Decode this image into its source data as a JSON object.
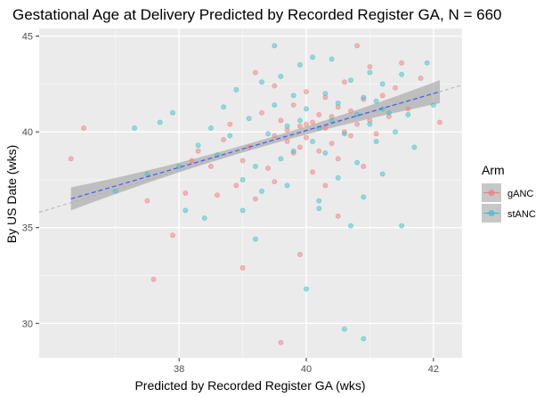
{
  "chart_data": {
    "type": "scatter",
    "title": "Gestational Age at Delivery Predicted by Recorded Register GA, N = 660",
    "xlabel": "Predicted by Recorded Register GA (wks)",
    "ylabel": "By US Date (wks)",
    "xlim": [
      35.8,
      42.45
    ],
    "ylim": [
      28.2,
      45.4
    ],
    "x_ticks": [
      38,
      40,
      42
    ],
    "y_ticks": [
      30,
      35,
      40,
      45
    ],
    "grid": true,
    "legend": {
      "title": "Arm",
      "placement": "right",
      "entries": [
        "gANC",
        "stANC"
      ]
    },
    "colors": {
      "gANC": "#f08080",
      "stANC": "#3fc1c9",
      "panel": "#ebebeb",
      "regression_line": "#3d5afe",
      "confidence_band": "#999999",
      "identity_line": "#b3b3b3"
    },
    "reference_line": {
      "type": "identity",
      "slope": 1,
      "intercept": 0
    },
    "regression": {
      "x": [
        36.3,
        42.1
      ],
      "y": [
        36.5,
        42.1
      ],
      "ci_half_width_at_ends": 0.6
    },
    "series": [
      {
        "name": "gANC",
        "points": [
          [
            36.3,
            38.6
          ],
          [
            36.5,
            40.2
          ],
          [
            37.5,
            36.4
          ],
          [
            37.6,
            32.3
          ],
          [
            37.9,
            34.6
          ],
          [
            38.1,
            36.8
          ],
          [
            38.3,
            39.0
          ],
          [
            38.5,
            38.2
          ],
          [
            38.7,
            39.6
          ],
          [
            38.8,
            40.4
          ],
          [
            38.9,
            37.2
          ],
          [
            39.0,
            38.5
          ],
          [
            39.0,
            32.9
          ],
          [
            39.1,
            39.2
          ],
          [
            39.2,
            36.5
          ],
          [
            39.3,
            41.0
          ],
          [
            39.4,
            38.1
          ],
          [
            39.5,
            39.8
          ],
          [
            39.5,
            37.4
          ],
          [
            39.6,
            29.0
          ],
          [
            39.6,
            40.6
          ],
          [
            39.7,
            39.5
          ],
          [
            39.7,
            40.1
          ],
          [
            39.8,
            38.9
          ],
          [
            39.8,
            41.4
          ],
          [
            39.9,
            40.3
          ],
          [
            39.9,
            39.2
          ],
          [
            40.0,
            42.1
          ],
          [
            40.0,
            39.7
          ],
          [
            40.1,
            40.5
          ],
          [
            40.1,
            37.9
          ],
          [
            40.2,
            40.9
          ],
          [
            40.2,
            39.0
          ],
          [
            40.3,
            41.8
          ],
          [
            40.3,
            40.2
          ],
          [
            40.4,
            39.4
          ],
          [
            40.4,
            40.8
          ],
          [
            40.5,
            38.6
          ],
          [
            40.5,
            41.3
          ],
          [
            40.6,
            40.0
          ],
          [
            40.6,
            42.6
          ],
          [
            40.7,
            39.8
          ],
          [
            40.7,
            41.1
          ],
          [
            40.8,
            40.4
          ],
          [
            40.9,
            38.2
          ],
          [
            40.9,
            41.7
          ],
          [
            41.0,
            40.6
          ],
          [
            41.0,
            43.4
          ],
          [
            41.1,
            39.9
          ],
          [
            41.2,
            41.9
          ],
          [
            41.3,
            40.8
          ],
          [
            41.4,
            42.3
          ],
          [
            41.5,
            43.6
          ],
          [
            41.6,
            41.2
          ],
          [
            41.8,
            42.8
          ],
          [
            42.1,
            40.5
          ],
          [
            39.9,
            33.6
          ],
          [
            40.3,
            37.2
          ],
          [
            40.5,
            35.6
          ],
          [
            39.5,
            42.4
          ],
          [
            38.2,
            38.5
          ],
          [
            38.6,
            36.7
          ],
          [
            39.2,
            43.1
          ],
          [
            40.8,
            44.5
          ],
          [
            40.0,
            40.4
          ]
        ]
      },
      {
        "name": "stANC",
        "points": [
          [
            37.0,
            36.9
          ],
          [
            37.3,
            40.2
          ],
          [
            37.5,
            37.8
          ],
          [
            37.7,
            40.5
          ],
          [
            37.9,
            41.0
          ],
          [
            38.0,
            38.2
          ],
          [
            38.1,
            35.9
          ],
          [
            38.3,
            39.3
          ],
          [
            38.4,
            35.5
          ],
          [
            38.5,
            40.2
          ],
          [
            38.6,
            38.8
          ],
          [
            38.7,
            41.3
          ],
          [
            38.8,
            39.8
          ],
          [
            38.9,
            42.2
          ],
          [
            39.0,
            37.5
          ],
          [
            39.0,
            35.9
          ],
          [
            39.1,
            40.7
          ],
          [
            39.2,
            38.2
          ],
          [
            39.3,
            42.6
          ],
          [
            39.3,
            36.9
          ],
          [
            39.4,
            39.9
          ],
          [
            39.5,
            41.4
          ],
          [
            39.5,
            44.5
          ],
          [
            39.6,
            38.6
          ],
          [
            39.6,
            42.9
          ],
          [
            39.7,
            40.3
          ],
          [
            39.7,
            37.2
          ],
          [
            39.8,
            41.9
          ],
          [
            39.8,
            39.0
          ],
          [
            39.9,
            43.5
          ],
          [
            39.9,
            40.6
          ],
          [
            40.0,
            31.8
          ],
          [
            40.0,
            41.2
          ],
          [
            40.1,
            39.5
          ],
          [
            40.1,
            43.9
          ],
          [
            40.2,
            40.2
          ],
          [
            40.2,
            36.4
          ],
          [
            40.3,
            42.0
          ],
          [
            40.3,
            38.9
          ],
          [
            40.4,
            40.6
          ],
          [
            40.4,
            43.8
          ],
          [
            40.5,
            41.5
          ],
          [
            40.5,
            37.6
          ],
          [
            40.6,
            39.9
          ],
          [
            40.6,
            29.7
          ],
          [
            40.7,
            42.7
          ],
          [
            40.7,
            35.1
          ],
          [
            40.8,
            40.9
          ],
          [
            40.8,
            38.4
          ],
          [
            40.9,
            41.8
          ],
          [
            40.9,
            36.6
          ],
          [
            41.0,
            40.4
          ],
          [
            41.0,
            43.1
          ],
          [
            41.1,
            39.5
          ],
          [
            41.1,
            41.6
          ],
          [
            41.2,
            42.5
          ],
          [
            41.2,
            37.8
          ],
          [
            41.3,
            41.0
          ],
          [
            41.4,
            40.0
          ],
          [
            41.5,
            35.1
          ],
          [
            41.5,
            43.0
          ],
          [
            41.6,
            40.9
          ],
          [
            41.7,
            39.2
          ],
          [
            41.9,
            43.6
          ],
          [
            42.0,
            41.4
          ],
          [
            39.2,
            34.4
          ],
          [
            40.2,
            36.0
          ],
          [
            40.9,
            29.2
          ],
          [
            41.2,
            41.2
          ]
        ]
      }
    ]
  }
}
